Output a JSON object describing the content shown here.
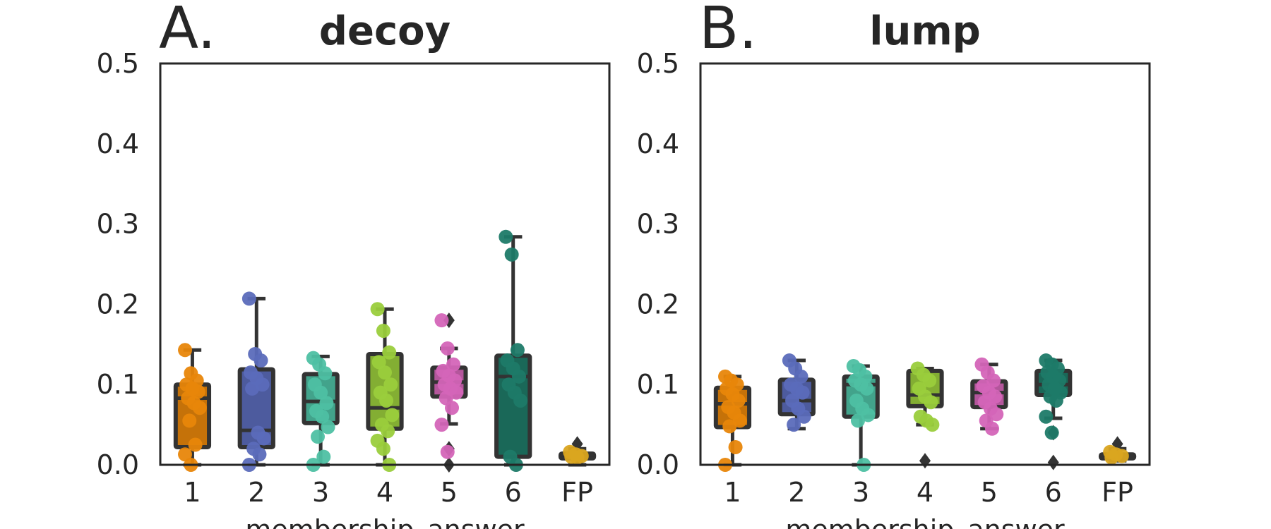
{
  "chart_data": [
    {
      "type": "box",
      "panel_label": "A.",
      "title": "decoy",
      "xlabel": "membership_answer",
      "ylabel": "",
      "ylim": [
        0,
        0.5
      ],
      "yticks": [
        0.0,
        0.1,
        0.2,
        0.3,
        0.4,
        0.5
      ],
      "ytick_labels": [
        "0.0",
        "0.1",
        "0.2",
        "0.3",
        "0.4",
        "0.5"
      ],
      "grid": false,
      "categories": [
        "1",
        "2",
        "3",
        "4",
        "5",
        "6",
        "FP"
      ],
      "colors": [
        "#e8860a",
        "#5b6bba",
        "#4ec0a3",
        "#9acd3c",
        "#d465b8",
        "#1e7a68",
        "#daa520"
      ],
      "boxes": [
        {
          "category": "1",
          "q1": 0.022,
          "median": 0.083,
          "q3": 0.1,
          "whisker_low": 0.0,
          "whisker_high": 0.143,
          "outliers": []
        },
        {
          "category": "2",
          "q1": 0.022,
          "median": 0.043,
          "q3": 0.119,
          "whisker_low": 0.0,
          "whisker_high": 0.207,
          "outliers": []
        },
        {
          "category": "3",
          "q1": 0.052,
          "median": 0.079,
          "q3": 0.113,
          "whisker_low": 0.0,
          "whisker_high": 0.135,
          "outliers": []
        },
        {
          "category": "4",
          "q1": 0.045,
          "median": 0.071,
          "q3": 0.138,
          "whisker_low": 0.0,
          "whisker_high": 0.194,
          "outliers": []
        },
        {
          "category": "5",
          "q1": 0.085,
          "median": 0.103,
          "q3": 0.121,
          "whisker_low": 0.051,
          "whisker_high": 0.145,
          "outliers": [
            0.18,
            0.02,
            0.0
          ]
        },
        {
          "category": "6",
          "q1": 0.01,
          "median": 0.11,
          "q3": 0.136,
          "whisker_low": 0.0,
          "whisker_high": 0.284,
          "outliers": []
        },
        {
          "category": "FP",
          "q1": 0.008,
          "median": 0.012,
          "q3": 0.014,
          "whisker_low": 0.0,
          "whisker_high": 0.02,
          "outliers": [
            0.026
          ]
        }
      ],
      "points": [
        [
          0.143,
          0.114,
          0.105,
          0.1,
          0.095,
          0.091,
          0.083,
          0.077,
          0.071,
          0.055,
          0.025,
          0.013,
          0.0
        ],
        [
          0.207,
          0.138,
          0.13,
          0.115,
          0.108,
          0.1,
          0.095,
          0.04,
          0.033,
          0.02,
          0.013,
          0.0
        ],
        [
          0.133,
          0.125,
          0.114,
          0.1,
          0.09,
          0.077,
          0.067,
          0.06,
          0.047,
          0.035,
          0.01,
          0.0
        ],
        [
          0.194,
          0.167,
          0.14,
          0.128,
          0.115,
          0.1,
          0.09,
          0.08,
          0.062,
          0.05,
          0.042,
          0.03,
          0.02,
          0.0
        ],
        [
          0.18,
          0.145,
          0.125,
          0.117,
          0.111,
          0.105,
          0.1,
          0.095,
          0.09,
          0.083,
          0.071,
          0.05,
          0.016
        ],
        [
          0.284,
          0.262,
          0.143,
          0.13,
          0.12,
          0.11,
          0.1,
          0.09,
          0.08,
          0.01,
          0.0
        ],
        [
          0.016,
          0.013,
          0.011,
          0.01,
          0.009
        ]
      ]
    },
    {
      "type": "box",
      "panel_label": "B.",
      "title": "lump",
      "xlabel": "membership_answer",
      "ylabel": "",
      "ylim": [
        0,
        0.5
      ],
      "yticks": [
        0.0,
        0.1,
        0.2,
        0.3,
        0.4,
        0.5
      ],
      "ytick_labels": [
        "0.0",
        "0.1",
        "0.2",
        "0.3",
        "0.4",
        "0.5"
      ],
      "grid": false,
      "categories": [
        "1",
        "2",
        "3",
        "4",
        "5",
        "6",
        "FP"
      ],
      "colors": [
        "#e8860a",
        "#5b6bba",
        "#4ec0a3",
        "#9acd3c",
        "#d465b8",
        "#1e7a68",
        "#daa520"
      ],
      "boxes": [
        {
          "category": "1",
          "q1": 0.047,
          "median": 0.076,
          "q3": 0.096,
          "whisker_low": 0.0,
          "whisker_high": 0.11,
          "outliers": []
        },
        {
          "category": "2",
          "q1": 0.063,
          "median": 0.08,
          "q3": 0.106,
          "whisker_low": 0.045,
          "whisker_high": 0.13,
          "outliers": []
        },
        {
          "category": "3",
          "q1": 0.06,
          "median": 0.1,
          "q3": 0.11,
          "whisker_low": 0.0,
          "whisker_high": 0.123,
          "outliers": []
        },
        {
          "category": "4",
          "q1": 0.073,
          "median": 0.087,
          "q3": 0.117,
          "whisker_low": 0.05,
          "whisker_high": 0.12,
          "outliers": [
            0.005
          ]
        },
        {
          "category": "5",
          "q1": 0.072,
          "median": 0.09,
          "q3": 0.104,
          "whisker_low": 0.045,
          "whisker_high": 0.125,
          "outliers": []
        },
        {
          "category": "6",
          "q1": 0.087,
          "median": 0.1,
          "q3": 0.117,
          "whisker_low": 0.058,
          "whisker_high": 0.13,
          "outliers": [
            0.04,
            0.003
          ]
        },
        {
          "category": "FP",
          "q1": 0.008,
          "median": 0.011,
          "q3": 0.013,
          "whisker_low": 0.005,
          "whisker_high": 0.02,
          "outliers": [
            0.026
          ]
        }
      ],
      "points": [
        [
          0.11,
          0.105,
          0.1,
          0.095,
          0.088,
          0.08,
          0.072,
          0.065,
          0.055,
          0.048,
          0.022,
          0.0
        ],
        [
          0.13,
          0.12,
          0.11,
          0.1,
          0.095,
          0.09,
          0.08,
          0.07,
          0.06,
          0.05
        ],
        [
          0.123,
          0.118,
          0.11,
          0.105,
          0.1,
          0.095,
          0.08,
          0.07,
          0.062,
          0.055,
          0.0
        ],
        [
          0.12,
          0.112,
          0.105,
          0.095,
          0.085,
          0.078,
          0.06,
          0.055,
          0.05
        ],
        [
          0.125,
          0.115,
          0.105,
          0.098,
          0.09,
          0.085,
          0.078,
          0.07,
          0.063,
          0.055,
          0.045
        ],
        [
          0.13,
          0.125,
          0.12,
          0.115,
          0.11,
          0.105,
          0.1,
          0.095,
          0.09,
          0.085,
          0.08,
          0.06,
          0.04
        ],
        [
          0.016,
          0.013,
          0.011,
          0.009
        ]
      ]
    }
  ]
}
